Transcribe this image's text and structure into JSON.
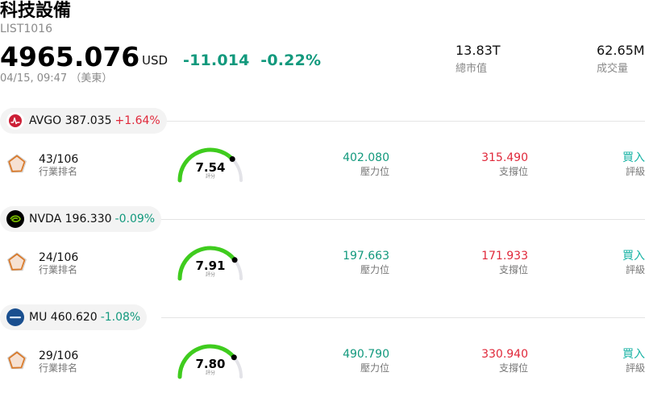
{
  "header": {
    "title": "科技設備",
    "code": "LIST1016",
    "price": "4965.076",
    "currency": "USD",
    "change": "-11.014",
    "change_pct": "-0.22%",
    "timestamp": "04/15, 09:47 （美東）"
  },
  "stats": [
    {
      "value": "13.83T",
      "label": "總市值"
    },
    {
      "value": "62.65M",
      "label": "成交量"
    }
  ],
  "labels": {
    "rank": "行業排名",
    "score": "評分",
    "resistance": "壓力位",
    "support": "支撐位",
    "rating": "評級"
  },
  "colors": {
    "up": "#e0283a",
    "down": "#12997d",
    "gauge": "#3fcc1e",
    "rating": "#19b3a5"
  },
  "stocks": [
    {
      "ticker": "AVGO",
      "price": "387.035",
      "change_pct": "+1.64%",
      "direction": "up",
      "logo_icon": "broadcom-logo-icon",
      "rank": "43/106",
      "score": "7.54",
      "score_value": 7.54,
      "resistance": "402.080",
      "support": "315.490",
      "rating": "買入"
    },
    {
      "ticker": "NVDA",
      "price": "196.330",
      "change_pct": "-0.09%",
      "direction": "down",
      "logo_icon": "nvidia-logo-icon",
      "rank": "24/106",
      "score": "7.91",
      "score_value": 7.91,
      "resistance": "197.663",
      "support": "171.933",
      "rating": "買入"
    },
    {
      "ticker": "MU",
      "price": "460.620",
      "change_pct": "-1.08%",
      "direction": "down",
      "logo_icon": "micron-logo-icon",
      "rank": "29/106",
      "score": "7.80",
      "score_value": 7.8,
      "resistance": "490.790",
      "support": "330.940",
      "rating": "買入"
    }
  ]
}
